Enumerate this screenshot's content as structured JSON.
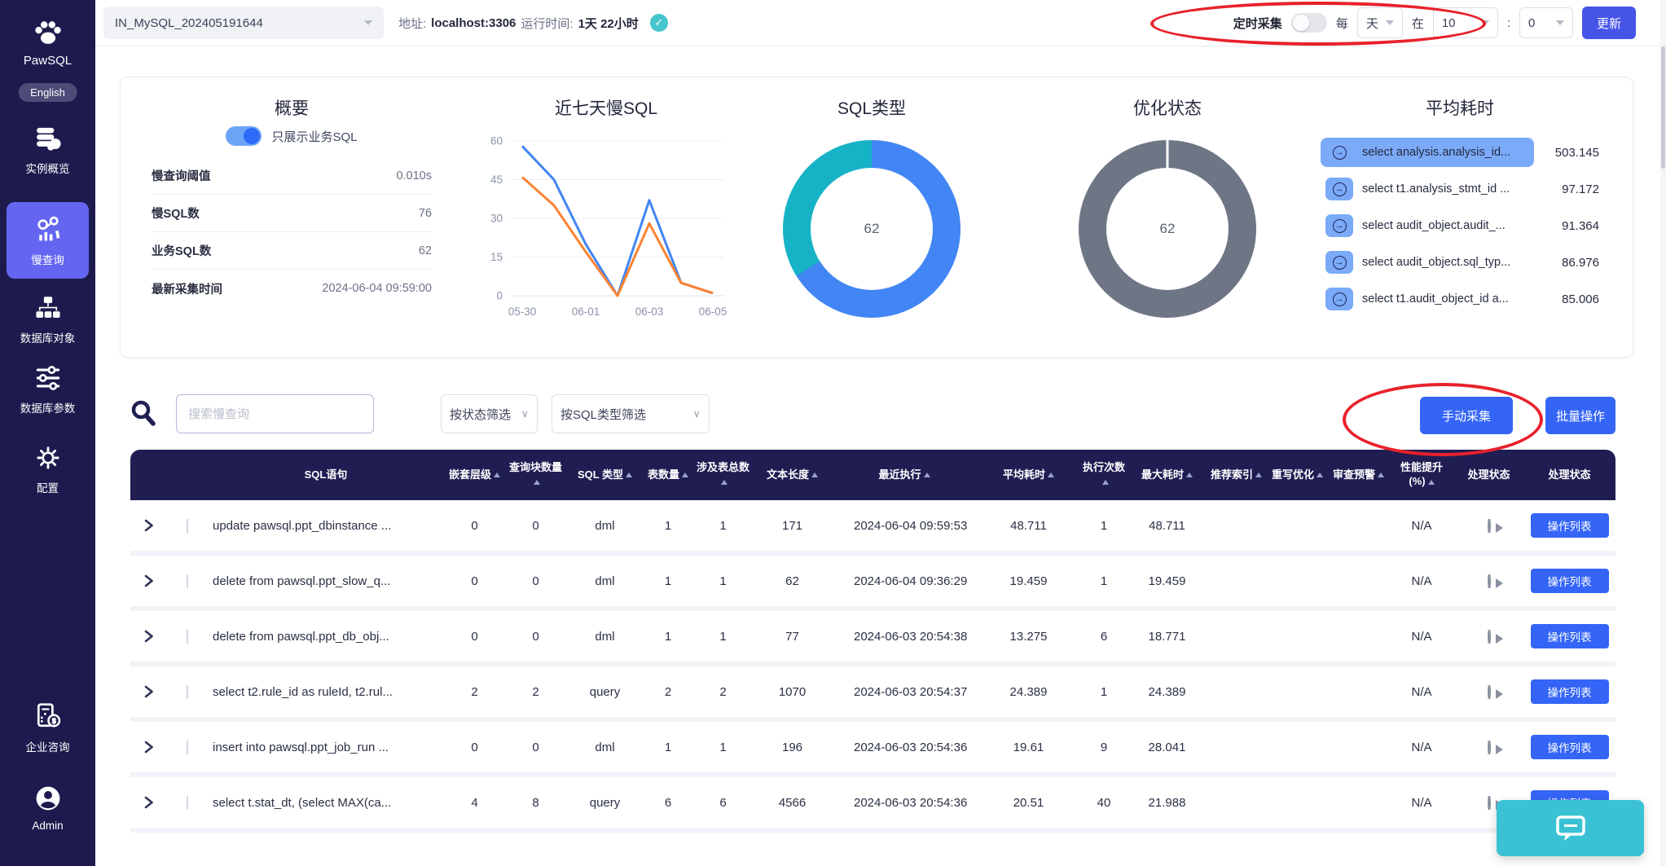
{
  "sidebar": {
    "brand": "PawSQL",
    "language_button": "English",
    "items": [
      {
        "label": "实例概览",
        "icon": "database-icon",
        "active": false
      },
      {
        "label": "慢查询",
        "icon": "slow-query-icon",
        "active": true
      },
      {
        "label": "数据库对象",
        "icon": "db-objects-icon",
        "active": false
      },
      {
        "label": "数据库参数",
        "icon": "db-params-icon",
        "active": false
      },
      {
        "label": "配置",
        "icon": "gear-icon",
        "active": false
      },
      {
        "label": "企业咨询",
        "icon": "consult-icon",
        "active": false
      },
      {
        "label": "Admin",
        "icon": "user-icon",
        "active": false
      }
    ]
  },
  "topbar": {
    "instance_select": "IN_MySQL_202405191644",
    "address_label": "地址:",
    "address_value": "localhost:3306",
    "uptime_label": "运行时间:",
    "uptime_value": "1天 22小时",
    "status_icon": "check-icon",
    "schedule": {
      "label": "定时采集",
      "toggle_on": false,
      "every_label": "每",
      "unit_value": "天",
      "at_label": "在",
      "hour_value": "10",
      "separator": ":",
      "minute_value": "0"
    },
    "update_button": "更新"
  },
  "overview": {
    "summary": {
      "title": "概要",
      "toggle_on": true,
      "toggle_label": "只展示业务SQL",
      "rows": [
        {
          "label": "慢查询阈值",
          "value": "0.010s"
        },
        {
          "label": "慢SQL数",
          "value": "76"
        },
        {
          "label": "业务SQL数",
          "value": "62"
        },
        {
          "label": "最新采集时间",
          "value": "2024-06-04 09:59:00"
        }
      ]
    },
    "avg_time": {
      "title": "平均耗时",
      "items": [
        {
          "sql": "select analysis.analysis_id...",
          "value": "503.145",
          "highlight": true
        },
        {
          "sql": "select t1.analysis_stmt_id ...",
          "value": "97.172",
          "highlight": false
        },
        {
          "sql": "select audit_object.audit_...",
          "value": "91.364",
          "highlight": false
        },
        {
          "sql": "select audit_object.sql_typ...",
          "value": "86.976",
          "highlight": false
        },
        {
          "sql": "select t1.audit_object_id a...",
          "value": "85.006",
          "highlight": false
        }
      ]
    }
  },
  "chart_data": [
    {
      "type": "line",
      "title": "近七天慢SQL",
      "x": [
        "05-30",
        "05-31",
        "06-01",
        "06-02",
        "06-03",
        "06-04",
        "06-05"
      ],
      "x_ticks_shown": [
        "05-30",
        "06-01",
        "06-03",
        "06-05"
      ],
      "series": [
        {
          "name": "blue-series",
          "color": "#4285f4",
          "values": [
            58,
            45,
            20,
            0,
            37,
            5,
            1
          ]
        },
        {
          "name": "orange-series",
          "color": "#fb8332",
          "values": [
            46,
            35,
            17,
            0,
            28,
            5,
            1
          ]
        }
      ],
      "ylim": [
        0,
        60
      ],
      "yticks": [
        0,
        15,
        30,
        45,
        60
      ],
      "grid": true,
      "legend": "none"
    },
    {
      "type": "pie",
      "title": "SQL类型",
      "center_label": "62",
      "segments": [
        {
          "name": "blue-segment",
          "color": "#4285f4",
          "value": 41
        },
        {
          "name": "teal-segment",
          "color": "#16b3c6",
          "value": 21
        }
      ]
    },
    {
      "type": "pie",
      "title": "优化状态",
      "center_label": "62",
      "segments": [
        {
          "name": "gray-segment",
          "color": "#6e7585",
          "value": 62
        }
      ]
    }
  ],
  "filters": {
    "search_icon": "search-icon",
    "search_placeholder": "搜索慢查询",
    "status_filter": "按状态筛选",
    "type_filter": "按SQL类型筛选",
    "manual_collect_button": "手动采集",
    "batch_button": "批量操作"
  },
  "table": {
    "action_button": "操作列表",
    "columns": [
      {
        "key": "expand",
        "label": "",
        "sortable": false
      },
      {
        "key": "checkbox",
        "label": "",
        "sortable": false
      },
      {
        "key": "sql",
        "label": "SQL语句",
        "sortable": false
      },
      {
        "key": "nest_level",
        "label": "嵌套层级",
        "sortable": true
      },
      {
        "key": "query_blocks",
        "label": "查询块数量",
        "sortable": true
      },
      {
        "key": "sql_type",
        "label": "SQL 类型",
        "sortable": true
      },
      {
        "key": "table_count",
        "label": "表数量",
        "sortable": true
      },
      {
        "key": "involved_tables",
        "label": "涉及表总数",
        "sortable": true
      },
      {
        "key": "text_length",
        "label": "文本长度",
        "sortable": true
      },
      {
        "key": "last_exec",
        "label": "最近执行",
        "sortable": true
      },
      {
        "key": "avg_time",
        "label": "平均耗时",
        "sortable": true
      },
      {
        "key": "exec_count",
        "label": "执行次数",
        "sortable": true
      },
      {
        "key": "max_time",
        "label": "最大耗时",
        "sortable": true
      },
      {
        "key": "rec_index",
        "label": "推荐索引",
        "sortable": true
      },
      {
        "key": "rewrite",
        "label": "重写优化",
        "sortable": true
      },
      {
        "key": "audit_warn",
        "label": "审查预警",
        "sortable": true
      },
      {
        "key": "perf_gain",
        "label": "性能提升 (%)",
        "sortable": true
      },
      {
        "key": "proc_status_play",
        "label": "处理状态",
        "sortable": false
      },
      {
        "key": "proc_status_actions",
        "label": "处理状态",
        "sortable": false
      }
    ],
    "rows": [
      {
        "sql": "update pawsql.ppt_dbinstance ...",
        "nest_level": "0",
        "query_blocks": "0",
        "sql_type": "dml",
        "table_count": "1",
        "involved_tables": "1",
        "text_length": "171",
        "last_exec": "2024-06-04 09:59:53",
        "avg_time": "48.711",
        "exec_count": "1",
        "max_time": "48.711",
        "rec_index": "",
        "rewrite": "",
        "audit_warn": "",
        "perf_gain": "N/A"
      },
      {
        "sql": "delete from pawsql.ppt_slow_q...",
        "nest_level": "0",
        "query_blocks": "0",
        "sql_type": "dml",
        "table_count": "1",
        "involved_tables": "1",
        "text_length": "62",
        "last_exec": "2024-06-04 09:36:29",
        "avg_time": "19.459",
        "exec_count": "1",
        "max_time": "19.459",
        "rec_index": "",
        "rewrite": "",
        "audit_warn": "",
        "perf_gain": "N/A"
      },
      {
        "sql": "delete from pawsql.ppt_db_obj...",
        "nest_level": "0",
        "query_blocks": "0",
        "sql_type": "dml",
        "table_count": "1",
        "involved_tables": "1",
        "text_length": "77",
        "last_exec": "2024-06-03 20:54:38",
        "avg_time": "13.275",
        "exec_count": "6",
        "max_time": "18.771",
        "rec_index": "",
        "rewrite": "",
        "audit_warn": "",
        "perf_gain": "N/A"
      },
      {
        "sql": "select t2.rule_id as ruleId, t2.rul...",
        "nest_level": "2",
        "query_blocks": "2",
        "sql_type": "query",
        "table_count": "2",
        "involved_tables": "2",
        "text_length": "1070",
        "last_exec": "2024-06-03 20:54:37",
        "avg_time": "24.389",
        "exec_count": "1",
        "max_time": "24.389",
        "rec_index": "",
        "rewrite": "",
        "audit_warn": "",
        "perf_gain": "N/A"
      },
      {
        "sql": "insert into pawsql.ppt_job_run ...",
        "nest_level": "0",
        "query_blocks": "0",
        "sql_type": "dml",
        "table_count": "1",
        "involved_tables": "1",
        "text_length": "196",
        "last_exec": "2024-06-03 20:54:36",
        "avg_time": "19.61",
        "exec_count": "9",
        "max_time": "28.041",
        "rec_index": "",
        "rewrite": "",
        "audit_warn": "",
        "perf_gain": "N/A"
      },
      {
        "sql": "select t.stat_dt, (select MAX(ca...",
        "nest_level": "4",
        "query_blocks": "8",
        "sql_type": "query",
        "table_count": "6",
        "involved_tables": "6",
        "text_length": "4566",
        "last_exec": "2024-06-03 20:54:36",
        "avg_time": "20.51",
        "exec_count": "40",
        "max_time": "21.988",
        "rec_index": "",
        "rewrite": "",
        "audit_warn": "",
        "perf_gain": "N/A"
      }
    ]
  },
  "chat_widget": {
    "icon": "chat-bubble-icon"
  },
  "annotations": {
    "color": "#e8212b",
    "shapes": [
      "ellipse-around-schedule-controls",
      "ellipse-around-manual-collect-button"
    ]
  },
  "colors": {
    "sidebar_navy": "#1d1b4e",
    "active_item_indigo": "#6466f1",
    "primary_blue": "#3565f6",
    "update_indigo": "#4654e8",
    "table_header_navy": "#201d53",
    "line_blue": "#4285f4",
    "line_orange": "#fb8332",
    "donut_teal": "#16b3c6",
    "donut_gray": "#6e7585",
    "check_teal": "#47c5cd",
    "chat_teal": "#3ac2d4",
    "highlight_pill_blue": "#7aaaf8",
    "annotation_red": "#e8212b"
  }
}
